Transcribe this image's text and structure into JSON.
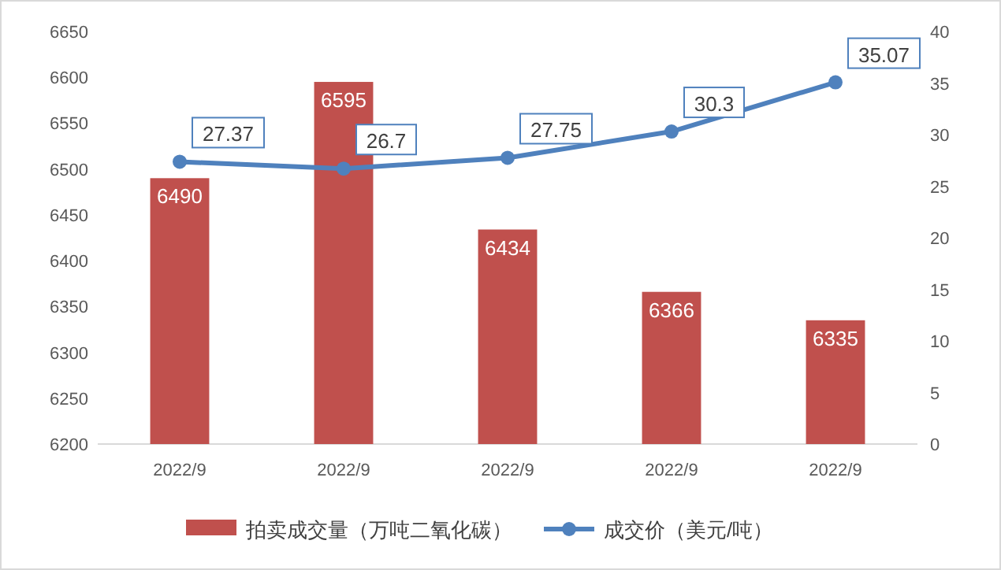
{
  "chart_data": {
    "type": "bar",
    "categories": [
      "2022/9",
      "2022/9",
      "2022/9",
      "2022/9",
      "2022/9"
    ],
    "series": [
      {
        "name": "拍卖成交量（万吨二氧化碳）",
        "color": "#c0504d",
        "values": [
          6490,
          6595,
          6434,
          6366,
          6335
        ]
      },
      {
        "name": "成交价（美元/吨）",
        "type": "line",
        "axis": "y2",
        "color": "#4f81bd",
        "values": [
          27.37,
          26.7,
          27.75,
          30.3,
          35.07
        ]
      }
    ],
    "ylim": [
      6200,
      6650
    ],
    "yticks": [
      6200,
      6250,
      6300,
      6350,
      6400,
      6450,
      6500,
      6550,
      6600,
      6650
    ],
    "y2lim": [
      0,
      40
    ],
    "y2ticks": [
      0,
      5,
      10,
      15,
      20,
      25,
      30,
      35,
      40
    ],
    "data_labels": true,
    "legend": "bottom",
    "marker": "circle",
    "line_style": "solid"
  }
}
